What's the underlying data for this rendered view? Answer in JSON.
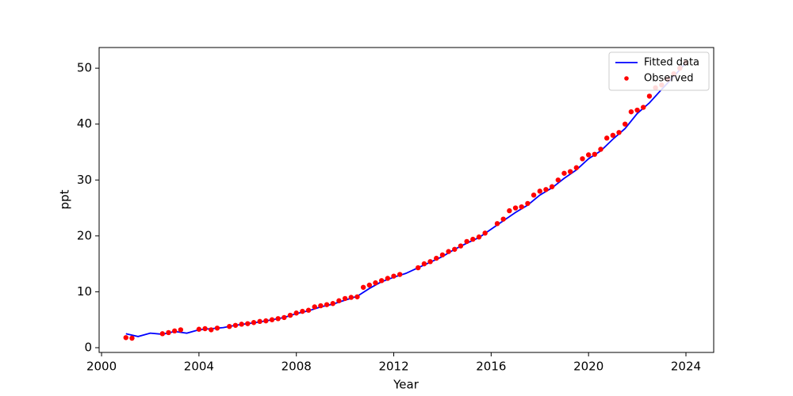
{
  "chart_data": {
    "type": "line",
    "xlabel": "Year",
    "ylabel": "ppt",
    "xlim": [
      1999.9,
      2025.14
    ],
    "ylim": [
      -0.85,
      53.7
    ],
    "xticks": [
      2000,
      2004,
      2008,
      2012,
      2016,
      2020,
      2024
    ],
    "yticks": [
      0,
      10,
      20,
      30,
      40,
      50
    ],
    "legend": "upper right",
    "series": [
      {
        "name": "Fitted data",
        "type": "line",
        "color": "#0000ff",
        "x": [
          2001,
          2001.5,
          2002,
          2002.5,
          2003,
          2003.5,
          2004,
          2004.5,
          2005,
          2005.5,
          2006,
          2006.5,
          2007,
          2007.5,
          2008,
          2008.5,
          2009,
          2009.5,
          2010,
          2010.5,
          2011,
          2011.5,
          2012,
          2012.5,
          2013,
          2013.5,
          2014,
          2014.5,
          2015,
          2015.5,
          2016,
          2016.5,
          2017,
          2017.5,
          2018,
          2018.5,
          2019,
          2019.5,
          2020,
          2020.5,
          2021,
          2021.5,
          2022,
          2022.5,
          2023,
          2023.5,
          2024
        ],
        "values": [
          2.5,
          2.0,
          2.6,
          2.4,
          2.9,
          2.6,
          3.2,
          3.4,
          3.6,
          4.0,
          4.3,
          4.6,
          5.0,
          5.4,
          6.1,
          6.6,
          7.3,
          7.8,
          8.5,
          9.2,
          10.6,
          11.8,
          12.6,
          13.3,
          14.3,
          15.3,
          16.3,
          17.6,
          18.7,
          19.7,
          21.2,
          22.7,
          24.2,
          25.5,
          27.3,
          28.6,
          30.3,
          31.8,
          33.8,
          35.2,
          37.3,
          39.2,
          41.9,
          43.8,
          46.2,
          48.5,
          51.0
        ]
      },
      {
        "name": "Observed",
        "type": "scatter",
        "color": "#ff0000",
        "x": [
          2001.0,
          2001.25,
          2002.5,
          2002.75,
          2003.0,
          2003.25,
          2004.0,
          2004.25,
          2004.5,
          2004.75,
          2005.25,
          2005.5,
          2005.75,
          2006.0,
          2006.25,
          2006.5,
          2006.75,
          2007.0,
          2007.25,
          2007.5,
          2007.75,
          2008.0,
          2008.25,
          2008.5,
          2008.75,
          2009.0,
          2009.25,
          2009.5,
          2009.75,
          2010.0,
          2010.25,
          2010.5,
          2010.75,
          2011.0,
          2011.25,
          2011.5,
          2011.75,
          2012.0,
          2012.25,
          2013.0,
          2013.25,
          2013.5,
          2013.75,
          2014.0,
          2014.25,
          2014.5,
          2014.75,
          2015.0,
          2015.25,
          2015.5,
          2015.75,
          2016.25,
          2016.5,
          2016.75,
          2017.0,
          2017.25,
          2017.5,
          2017.75,
          2018.0,
          2018.25,
          2018.5,
          2018.75,
          2019.0,
          2019.25,
          2019.5,
          2019.75,
          2020.0,
          2020.25,
          2020.5,
          2020.75,
          2021.0,
          2021.25,
          2021.5,
          2021.75,
          2022.0,
          2022.25,
          2022.5,
          2022.75,
          2023.0,
          2023.25,
          2023.5,
          2023.75,
          2024.0
        ],
        "values": [
          1.8,
          1.7,
          2.5,
          2.7,
          3.0,
          3.2,
          3.3,
          3.4,
          3.2,
          3.5,
          3.8,
          4.0,
          4.2,
          4.3,
          4.5,
          4.7,
          4.8,
          5.0,
          5.2,
          5.4,
          5.8,
          6.2,
          6.5,
          6.7,
          7.3,
          7.5,
          7.7,
          7.9,
          8.4,
          8.8,
          9.0,
          9.1,
          10.8,
          11.2,
          11.6,
          12.0,
          12.4,
          12.8,
          13.1,
          14.3,
          15.0,
          15.4,
          16.0,
          16.6,
          17.2,
          17.6,
          18.2,
          19.0,
          19.4,
          19.8,
          20.5,
          22.2,
          23.0,
          24.5,
          25.0,
          25.2,
          25.8,
          27.3,
          28.0,
          28.3,
          28.8,
          30.0,
          31.2,
          31.5,
          32.2,
          33.8,
          34.5,
          34.6,
          35.5,
          37.5,
          38.0,
          38.5,
          40.0,
          42.2,
          42.5,
          43.0,
          45.0,
          46.5,
          47.0,
          48.0,
          49.0,
          50.0,
          51.0
        ]
      }
    ]
  }
}
